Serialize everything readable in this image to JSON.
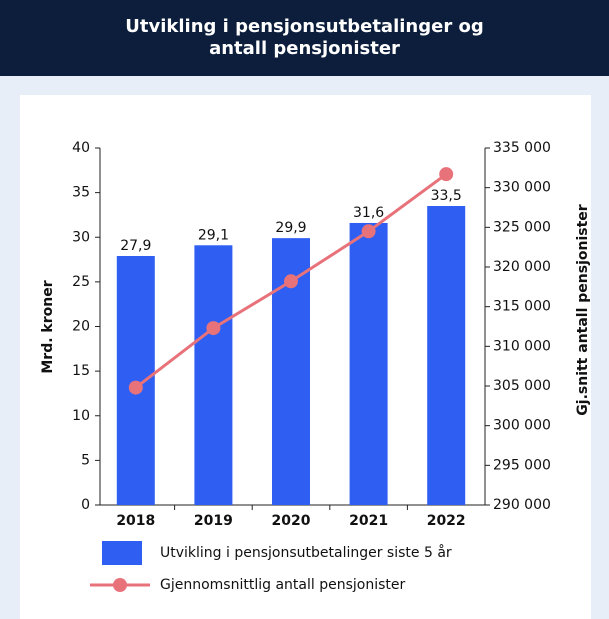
{
  "chart_data": {
    "type": "bar",
    "title": "Utvikling i pensjonsutbetalinger og antall pensjonister",
    "categories": [
      "2018",
      "2019",
      "2020",
      "2021",
      "2022"
    ],
    "series": [
      {
        "name": "Utvikling i pensjonsutbetalinger siste 5 år",
        "type": "bar",
        "color": "#2f5ff2",
        "values": [
          27.9,
          29.1,
          29.9,
          31.6,
          33.5
        ],
        "value_labels": [
          "27,9",
          "29,1",
          "29,9",
          "31,6",
          "33,5"
        ]
      },
      {
        "name": "Gjennomsnittlig antall pensjonister",
        "type": "line",
        "axis": "y2",
        "color": "#e8727a",
        "values": [
          304800,
          312300,
          318200,
          324500,
          331700
        ]
      }
    ],
    "y_label": "Mrd. kroner",
    "y2_label": "Gj.snitt antall pensjonister",
    "ylim": [
      0,
      40
    ],
    "yticks": [
      0,
      5,
      10,
      15,
      20,
      25,
      30,
      35,
      40
    ],
    "y2lim": [
      290000,
      335000
    ],
    "y2ticks": [
      {
        "value": 290000,
        "label": "290 000"
      },
      {
        "value": 295000,
        "label": "295 000"
      },
      {
        "value": 300000,
        "label": "300 000"
      },
      {
        "value": 305000,
        "label": "305 000"
      },
      {
        "value": 310000,
        "label": "310 000"
      },
      {
        "value": 315000,
        "label": "315 000"
      },
      {
        "value": 320000,
        "label": "320 000"
      },
      {
        "value": 325000,
        "label": "325 000"
      },
      {
        "value": 330000,
        "label": "330 000"
      },
      {
        "value": 335000,
        "label": "335 000"
      }
    ]
  }
}
